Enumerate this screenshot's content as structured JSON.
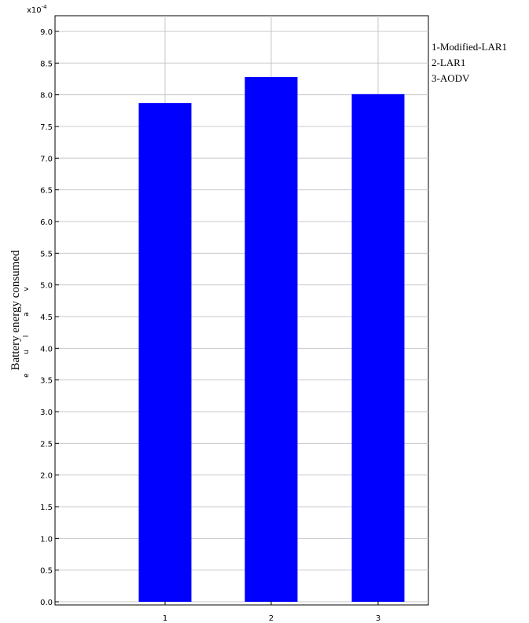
{
  "chart_data": {
    "type": "bar",
    "categories": [
      "1",
      "2",
      "3"
    ],
    "values": [
      0.000787,
      0.000828,
      0.000801
    ],
    "ylabel": "Battery energy consumed",
    "ylabel_artifact": [
      "e",
      "u",
      "l",
      "a",
      "v"
    ],
    "y_exponent_label": "x10",
    "y_exponent_power": "-4",
    "y_ticks": [
      "0.0",
      "0.5",
      "1.0",
      "1.5",
      "2.0",
      "2.5",
      "3.0",
      "3.5",
      "4.0",
      "4.5",
      "5.0",
      "5.5",
      "6.0",
      "6.5",
      "7.0",
      "7.5",
      "8.0",
      "8.5",
      "9.0"
    ],
    "ylim": [
      0,
      9.2
    ],
    "y_scale": 0.0001,
    "grid": true,
    "legend": {
      "placement": "top-right",
      "entries": [
        "1-Modified-LAR1",
        "2-LAR1",
        "3-AODV"
      ]
    },
    "colors": {
      "bar": "#0000ff",
      "grid": "#c8c8c8",
      "axis": "#000000"
    }
  }
}
